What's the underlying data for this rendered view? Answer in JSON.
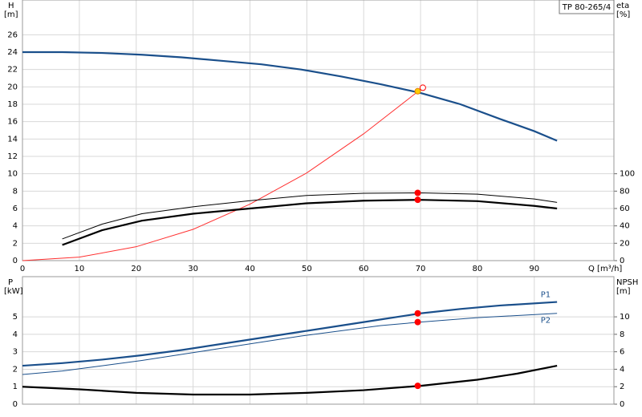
{
  "chart_data": [
    {
      "type": "line",
      "y_label": "H",
      "y_unit": "[m]",
      "y2_label": "eta",
      "y2_unit": "[%]",
      "x_label": "Q [m³/h]",
      "title": "TP 80-265/4",
      "xlim": [
        0,
        104
      ],
      "ylim": [
        0,
        30
      ],
      "y2lim": [
        0,
        300
      ],
      "grid": true,
      "xticks": [
        0,
        10,
        20,
        30,
        40,
        50,
        60,
        70,
        80,
        90
      ],
      "yticks": [
        0,
        2,
        4,
        6,
        8,
        10,
        12,
        14,
        16,
        18,
        20,
        22,
        24,
        26
      ],
      "y2ticks": [
        0,
        20,
        40,
        60,
        80,
        100
      ],
      "series": [
        {
          "color": "#1a4f8b",
          "style": "thick",
          "axis": "y",
          "x": [
            0,
            7,
            14,
            21,
            28,
            35,
            42,
            49,
            56,
            63,
            70,
            77,
            84,
            90,
            94
          ],
          "values": [
            24.0,
            24.0,
            23.9,
            23.7,
            23.4,
            23.0,
            22.6,
            22.0,
            21.2,
            20.3,
            19.3,
            18.0,
            16.3,
            14.9,
            13.8
          ]
        },
        {
          "color": "#ff3030",
          "style": "thin",
          "axis": "y",
          "x": [
            0,
            10,
            20,
            30,
            40,
            50,
            60,
            70.4
          ],
          "values": [
            0,
            0.4,
            1.6,
            3.6,
            6.5,
            10.1,
            14.6,
            19.9
          ]
        },
        {
          "color": "#000000",
          "style": "thin",
          "axis": "y2",
          "x": [
            7,
            14,
            21,
            30,
            40,
            50,
            60,
            70,
            80,
            90,
            94
          ],
          "values": [
            25,
            42,
            54,
            62,
            69,
            75,
            77.5,
            78,
            76.5,
            71,
            67
          ]
        },
        {
          "color": "#000000",
          "style": "thick",
          "axis": "y2",
          "x": [
            7,
            14,
            21,
            30,
            40,
            50,
            60,
            70,
            80,
            90,
            94
          ],
          "values": [
            18,
            35,
            46,
            54,
            60,
            66,
            69,
            70,
            68.5,
            63,
            60
          ]
        }
      ],
      "points": [
        {
          "x": 69.5,
          "y": 19.5,
          "color": "#ffcc00",
          "axis": "y"
        },
        {
          "x": 70.4,
          "y": 19.9,
          "color": "#ffffff",
          "axis": "y"
        },
        {
          "x": 69.5,
          "y": 78,
          "color": "#ff0000",
          "axis": "y2"
        },
        {
          "x": 69.5,
          "y": 70,
          "color": "#ff0000",
          "axis": "y2"
        }
      ]
    },
    {
      "type": "line",
      "y_label": "P",
      "y_unit": "[kW]",
      "y2_label": "NPSH",
      "y2_unit": "[m]",
      "xlim": [
        0,
        104
      ],
      "ylim": [
        0,
        7.3
      ],
      "y2lim": [
        0,
        14.6
      ],
      "grid": true,
      "xticks": [
        0,
        10,
        20,
        30,
        40,
        50,
        60,
        70,
        80,
        90
      ],
      "yticks": [
        0,
        1,
        2,
        3,
        4,
        5
      ],
      "y2ticks": [
        0,
        2,
        4,
        6,
        8,
        10
      ],
      "series": [
        {
          "name": "P1",
          "color": "#1a4f8b",
          "style": "thick",
          "axis": "y",
          "x": [
            0,
            7,
            14,
            21,
            28,
            35,
            42,
            49,
            56,
            63,
            70,
            77,
            84,
            94
          ],
          "values": [
            2.2,
            2.35,
            2.55,
            2.8,
            3.1,
            3.45,
            3.8,
            4.15,
            4.5,
            4.85,
            5.2,
            5.45,
            5.65,
            5.85
          ]
        },
        {
          "name": "P2",
          "color": "#1a4f8b",
          "style": "thin",
          "axis": "y",
          "x": [
            0,
            7,
            14,
            21,
            28,
            35,
            42,
            49,
            56,
            63,
            70,
            80,
            94
          ],
          "values": [
            1.7,
            1.9,
            2.2,
            2.5,
            2.85,
            3.2,
            3.55,
            3.9,
            4.2,
            4.5,
            4.7,
            4.95,
            5.2
          ]
        },
        {
          "color": "#000000",
          "style": "thick",
          "axis": "y2",
          "x": [
            0,
            10,
            20,
            30,
            40,
            50,
            60,
            70,
            80,
            87,
            94
          ],
          "values": [
            2.0,
            1.7,
            1.3,
            1.1,
            1.1,
            1.3,
            1.6,
            2.1,
            2.8,
            3.5,
            4.4
          ]
        }
      ],
      "points": [
        {
          "x": 69.5,
          "y": 5.2,
          "color": "#ff0000",
          "axis": "y"
        },
        {
          "x": 69.5,
          "y": 4.7,
          "color": "#ff0000",
          "axis": "y"
        },
        {
          "x": 69.5,
          "y": 2.1,
          "color": "#ff0000",
          "axis": "y2"
        }
      ]
    }
  ]
}
